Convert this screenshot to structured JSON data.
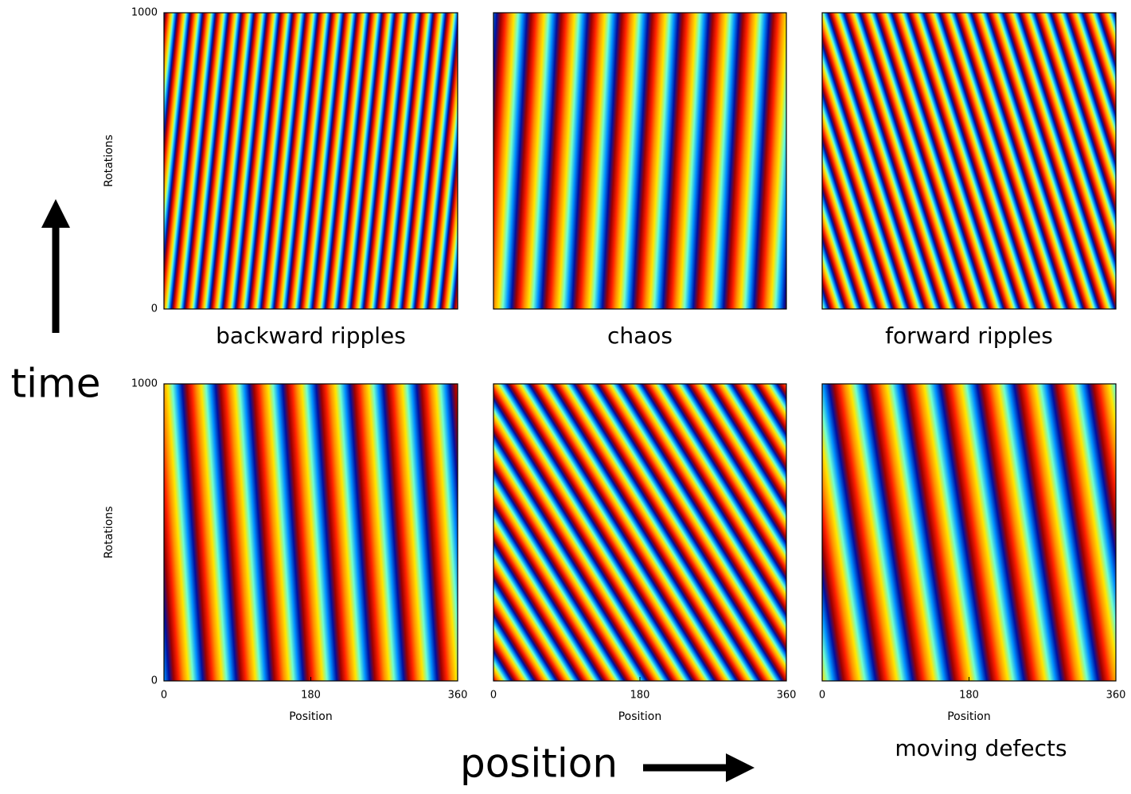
{
  "annotations": [
    "time",
    "position"
  ],
  "chart_data": [
    {
      "type": "heatmap",
      "title": "backward ripples",
      "ylabel": "Rotations",
      "xlim": [
        0,
        360
      ],
      "ylim": [
        0,
        1000
      ],
      "yticks": [
        0,
        1000
      ]
    },
    {
      "type": "heatmap",
      "title": "chaos",
      "xlim": [
        0,
        360
      ],
      "ylim": [
        0,
        1000
      ]
    },
    {
      "type": "heatmap",
      "title": "forward ripples",
      "xlim": [
        0,
        360
      ],
      "ylim": [
        0,
        1000
      ]
    },
    {
      "type": "heatmap",
      "ylabel": "Rotations",
      "xlabel": "Position",
      "xlim": [
        0,
        360
      ],
      "ylim": [
        0,
        1000
      ],
      "xticks": [
        0,
        180,
        360
      ],
      "yticks": [
        0,
        1000
      ]
    },
    {
      "type": "heatmap",
      "xlabel": "Position",
      "xlim": [
        0,
        360
      ],
      "ylim": [
        0,
        1000
      ],
      "xticks": [
        0,
        180,
        360
      ]
    },
    {
      "type": "heatmap",
      "title": "moving defects",
      "xlabel": "Position",
      "xlim": [
        0,
        360
      ],
      "ylim": [
        0,
        1000
      ],
      "xticks": [
        0,
        180,
        360
      ]
    }
  ]
}
